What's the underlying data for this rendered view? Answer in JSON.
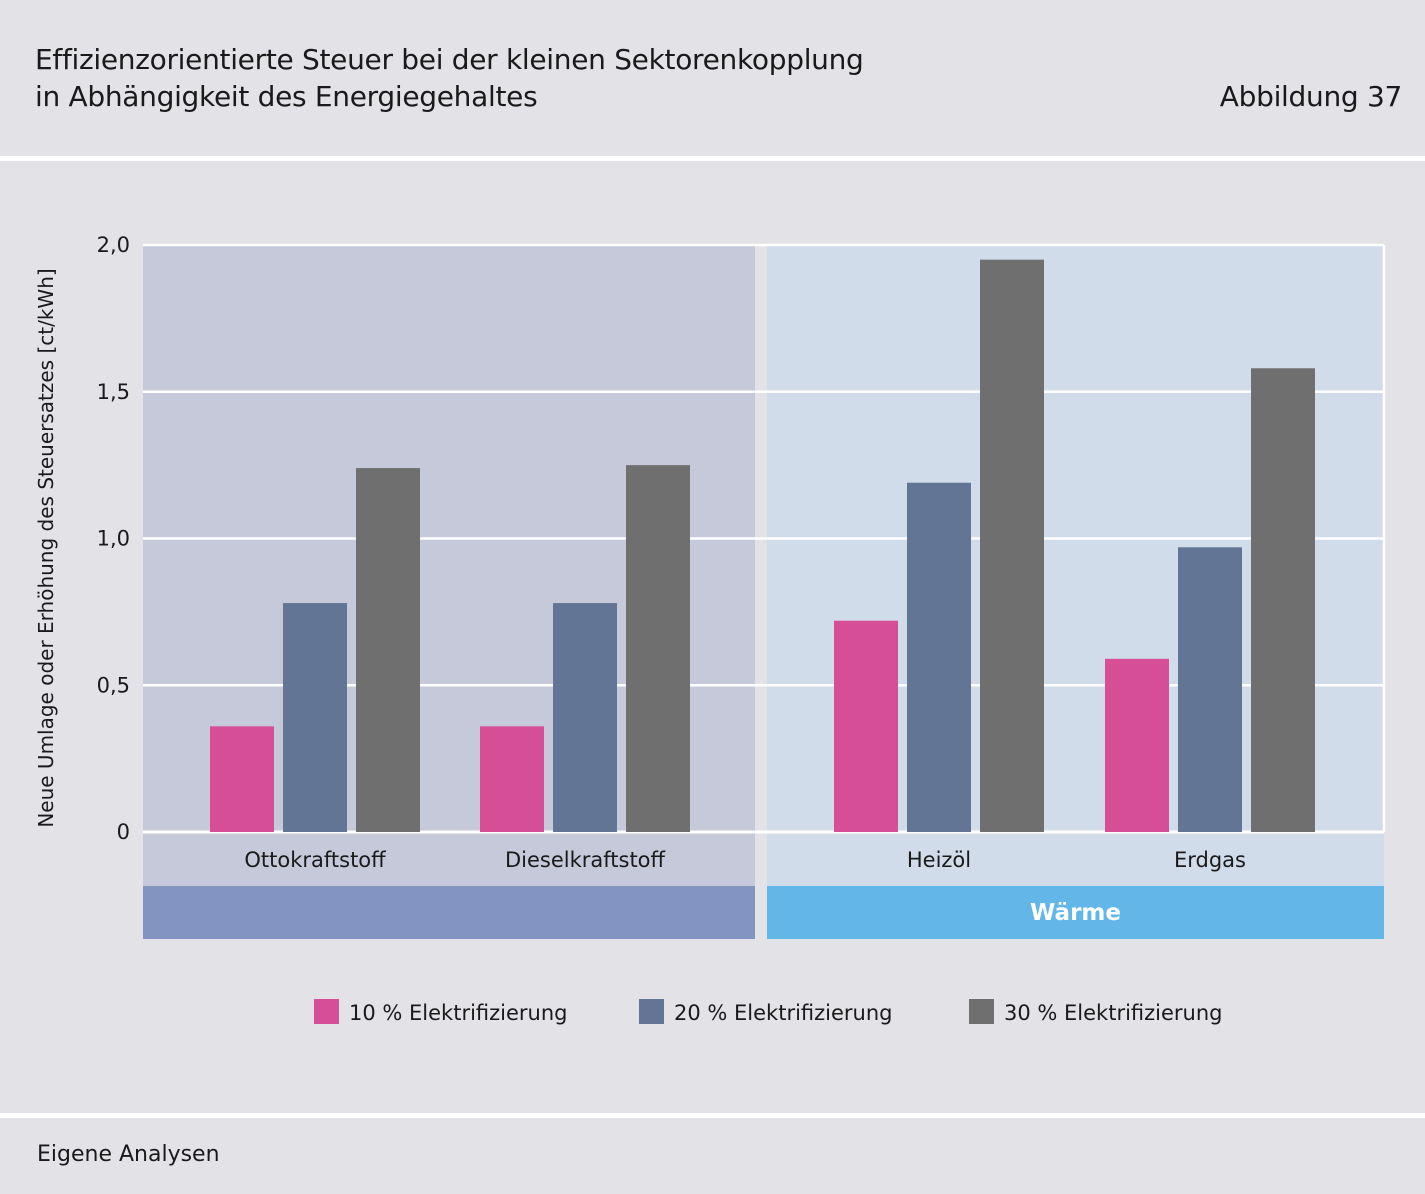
{
  "header": {
    "title_line1": "Effizienzorientierte Steuer bei der kleinen Sektorenkopplung",
    "title_line2": "in Abhängigkeit des Energiegehaltes",
    "figure_label": "Abbildung 37"
  },
  "footer": {
    "source": "Eigene Analysen"
  },
  "colors": {
    "series": [
      "#d54e96",
      "#627594",
      "#6f6f6f"
    ],
    "group_bg": [
      "#c6c9d9",
      "#d0dcea"
    ],
    "group_band": [
      "#8494c2",
      "#63b7e8"
    ],
    "grid": "#ffffff"
  },
  "chart_data": {
    "type": "bar",
    "title": "Effizienzorientierte Steuer bei der kleinen Sektorenkopplung in Abhängigkeit des Energiegehaltes",
    "ylabel": "Neue Umlage oder Erhöhung des Steuersatzes [ct/kWh]",
    "xlabel": "",
    "ylim": [
      0,
      2.0
    ],
    "yticks": [
      0,
      0.5,
      1.0,
      1.5,
      2.0
    ],
    "ytick_labels": [
      "0",
      "0,5",
      "1,0",
      "1,5",
      "2,0"
    ],
    "grid": true,
    "categories": [
      "Ottokraftstoff",
      "Dieselkraftstoff",
      "Heizöl",
      "Erdgas"
    ],
    "groups": [
      {
        "label": "",
        "categories": [
          "Ottokraftstoff",
          "Dieselkraftstoff"
        ]
      },
      {
        "label": "Wärme",
        "categories": [
          "Heizöl",
          "Erdgas"
        ]
      }
    ],
    "series": [
      {
        "name": "10 % Elektrifizierung",
        "values": [
          0.36,
          0.36,
          0.72,
          0.59
        ]
      },
      {
        "name": "20 % Elektrifizierung",
        "values": [
          0.78,
          0.78,
          1.19,
          0.97
        ]
      },
      {
        "name": "30 % Elektrifizierung",
        "values": [
          1.24,
          1.25,
          1.95,
          1.58
        ]
      }
    ],
    "legend_position": "bottom-center"
  }
}
